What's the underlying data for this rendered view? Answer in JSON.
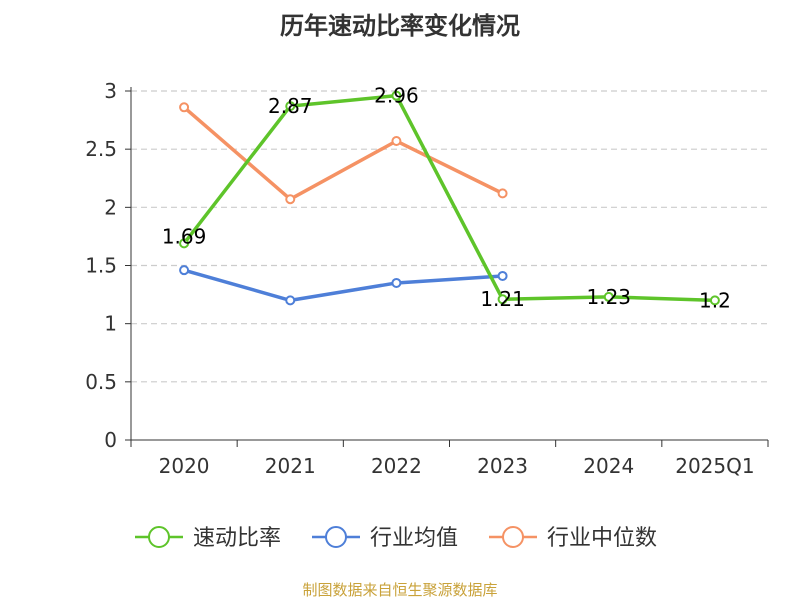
{
  "title": "历年速动比率变化情况",
  "source": "制图数据来自恒生聚源数据库",
  "colors": {
    "速动比率": "#5ec42a",
    "行业均值": "#4e7fd8",
    "行业中位数": "#f59264",
    "grid": "#cccccc",
    "axis": "#333333",
    "source": "#c9a23a"
  },
  "chart_data": {
    "type": "line",
    "categories": [
      "2020",
      "2021",
      "2022",
      "2023",
      "2024",
      "2025Q1"
    ],
    "ylim": [
      0,
      3
    ],
    "yticks": [
      "0",
      "0.5",
      "1",
      "1.5",
      "2",
      "2.5",
      "3"
    ],
    "ytick_values": [
      0,
      0.5,
      1,
      1.5,
      2,
      2.5,
      3
    ],
    "grid": true,
    "legend_position": "bottom",
    "series": [
      {
        "name": "速动比率",
        "values": [
          1.69,
          2.87,
          2.96,
          1.21,
          1.23,
          1.2
        ],
        "labels": [
          "1.69",
          "2.87",
          "2.96",
          "1.21",
          "1.23",
          "1.2"
        ]
      },
      {
        "name": "行业均值",
        "values": [
          1.46,
          1.2,
          1.35,
          1.41,
          null,
          null
        ],
        "labels": []
      },
      {
        "name": "行业中位数",
        "values": [
          2.86,
          2.07,
          2.57,
          2.12,
          null,
          null
        ],
        "labels": []
      }
    ]
  }
}
